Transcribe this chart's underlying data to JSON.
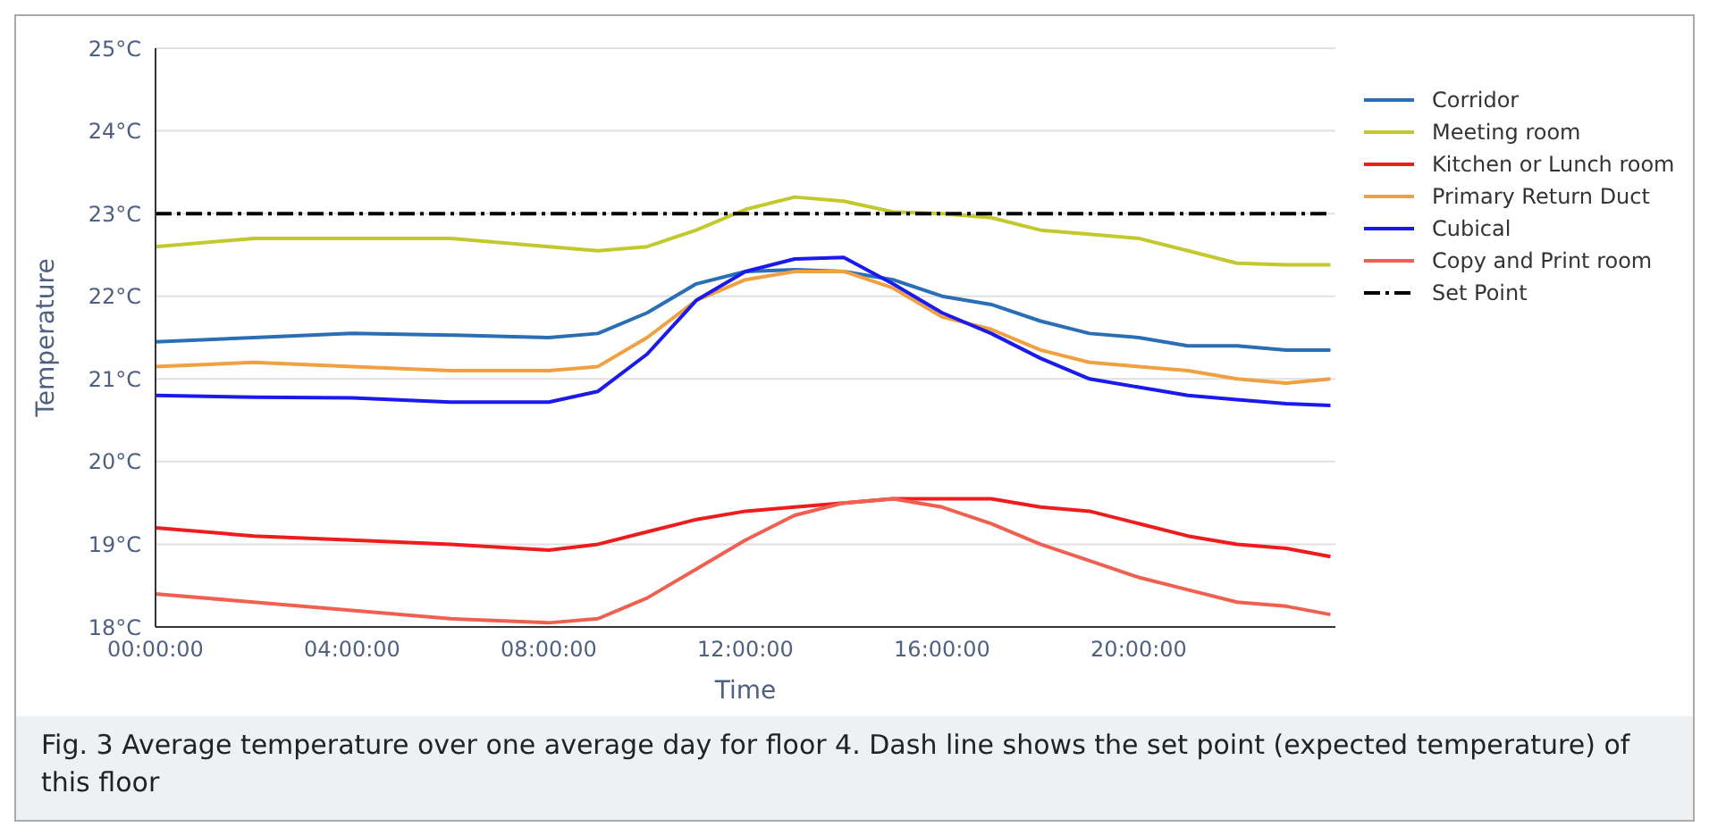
{
  "chart_data": {
    "type": "line",
    "xlabel": "Time",
    "ylabel": "Temperature",
    "x": [
      0,
      2,
      4,
      6,
      8,
      9,
      10,
      11,
      12,
      13,
      14,
      15,
      16,
      17,
      18,
      19,
      20,
      21,
      22,
      23,
      23.9
    ],
    "series": [
      {
        "name": "Corridor",
        "color": "#2a6fb5",
        "values": [
          21.45,
          21.5,
          21.55,
          21.53,
          21.5,
          21.55,
          21.8,
          22.15,
          22.3,
          22.32,
          22.3,
          22.2,
          22.0,
          21.9,
          21.7,
          21.55,
          21.5,
          21.4,
          21.4,
          21.35,
          21.35
        ]
      },
      {
        "name": "Meeting room",
        "color": "#c2c92e",
        "values": [
          22.6,
          22.7,
          22.7,
          22.7,
          22.6,
          22.55,
          22.6,
          22.8,
          23.05,
          23.2,
          23.15,
          23.02,
          23.0,
          22.95,
          22.8,
          22.75,
          22.7,
          22.55,
          22.4,
          22.38,
          22.38
        ]
      },
      {
        "name": "Kitchen or Lunch room",
        "color": "#ee1c1c",
        "values": [
          19.2,
          19.1,
          19.05,
          19.0,
          18.93,
          19.0,
          19.15,
          19.3,
          19.4,
          19.45,
          19.5,
          19.55,
          19.55,
          19.55,
          19.45,
          19.4,
          19.25,
          19.1,
          19.0,
          18.95,
          18.85
        ]
      },
      {
        "name": "Primary Return Duct",
        "color": "#f0a040",
        "values": [
          21.15,
          21.2,
          21.15,
          21.1,
          21.1,
          21.15,
          21.5,
          21.95,
          22.2,
          22.3,
          22.3,
          22.1,
          21.75,
          21.6,
          21.35,
          21.2,
          21.15,
          21.1,
          21.0,
          20.95,
          21.0
        ]
      },
      {
        "name": "Cubical",
        "color": "#1a1aee",
        "values": [
          20.8,
          20.78,
          20.77,
          20.72,
          20.72,
          20.85,
          21.3,
          21.95,
          22.3,
          22.45,
          22.47,
          22.15,
          21.8,
          21.55,
          21.25,
          21.0,
          20.9,
          20.8,
          20.75,
          20.7,
          20.68
        ]
      },
      {
        "name": "Copy and Print room",
        "color": "#f06050",
        "values": [
          18.4,
          18.3,
          18.2,
          18.1,
          18.05,
          18.1,
          18.35,
          18.7,
          19.05,
          19.35,
          19.5,
          19.55,
          19.45,
          19.25,
          19.0,
          18.8,
          18.6,
          18.45,
          18.3,
          18.25,
          18.15
        ]
      },
      {
        "name": "Set Point",
        "color": "#000000",
        "x": [
          0,
          23.9
        ],
        "values": [
          23,
          23
        ],
        "line_style": "dashed"
      }
    ],
    "xlim": [
      0,
      24
    ],
    "xticks": [
      {
        "value": 0,
        "label": "00:00:00"
      },
      {
        "value": 4,
        "label": "04:00:00"
      },
      {
        "value": 8,
        "label": "08:00:00"
      },
      {
        "value": 12,
        "label": "12:00:00"
      },
      {
        "value": 16,
        "label": "16:00:00"
      },
      {
        "value": 20,
        "label": "20:00:00"
      }
    ],
    "ylim": [
      18,
      25
    ],
    "yticks": [
      {
        "value": 18,
        "label": "18°C"
      },
      {
        "value": 19,
        "label": "19°C"
      },
      {
        "value": 20,
        "label": "20°C"
      },
      {
        "value": 21,
        "label": "21°C"
      },
      {
        "value": 22,
        "label": "22°C"
      },
      {
        "value": 23,
        "label": "23°C"
      },
      {
        "value": 24,
        "label": "24°C"
      },
      {
        "value": 25,
        "label": "25°C"
      }
    ],
    "grid": "y",
    "legend": "top right",
    "marker": "none",
    "line_style": "solid",
    "annotations": [
      "Fig. 3  Average temperature over one average day for floor 4. Dash line shows the set point (expected temperature) of this floor"
    ]
  }
}
